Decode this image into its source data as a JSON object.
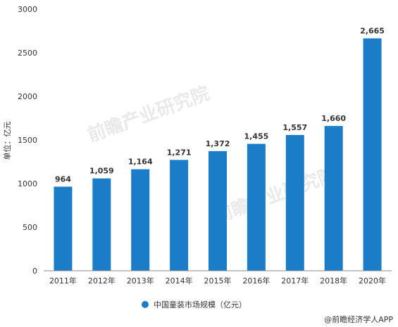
{
  "chart_data": {
    "type": "bar",
    "categories": [
      "2011年",
      "2012年",
      "2013年",
      "2014年",
      "2015年",
      "2016年",
      "2017年",
      "2018年",
      "2020年"
    ],
    "series": [
      {
        "name": "中国童装市场规模（亿元）",
        "values": [
          964,
          1059,
          1164,
          1271,
          1372,
          1455,
          1557,
          1660,
          2665
        ],
        "color": "#1b7cc8"
      }
    ],
    "data_labels": [
      "964",
      "1,059",
      "1,164",
      "1,271",
      "1,372",
      "1,455",
      "1,557",
      "1,660",
      "2,665"
    ],
    "y_ticks": [
      "0",
      "500",
      "1000",
      "1500",
      "2000",
      "2500",
      "3000"
    ],
    "ylim": [
      0,
      3000
    ],
    "ylabel": "单位：亿元",
    "xlabel": "",
    "title": "",
    "grid": false,
    "legend_position": "bottom"
  },
  "source": "@前瞻经济学人APP",
  "watermark_text": "前瞻产业研究院",
  "colors": {
    "bar": "#1b7cc8",
    "axis": "#888888",
    "text": "#333333"
  }
}
